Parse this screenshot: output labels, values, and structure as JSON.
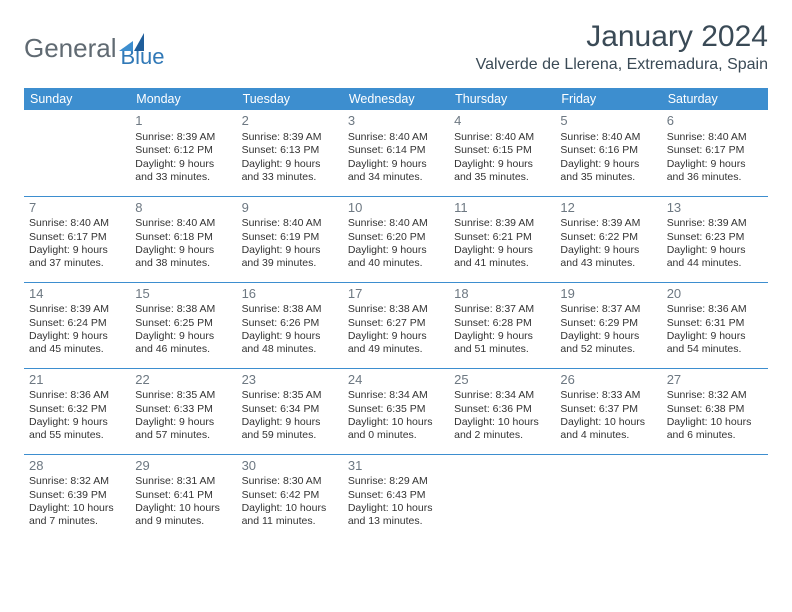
{
  "logo": {
    "word1": "General",
    "word2": "Blue"
  },
  "title": "January 2024",
  "subtitle": "Valverde de Llerena, Extremadura, Spain",
  "dayHeaders": [
    "Sunday",
    "Monday",
    "Tuesday",
    "Wednesday",
    "Thursday",
    "Friday",
    "Saturday"
  ],
  "colors": {
    "headerBg": "#3d8ecf",
    "headerFg": "#ffffff",
    "rule": "#3d8ecf",
    "dayNum": "#6d7882",
    "body": "#333333",
    "titleColor": "#3a4a56",
    "logoGray": "#606a72",
    "logoBlue": "#3179b7"
  },
  "weeks": [
    [
      {},
      {
        "n": "1",
        "sr": "Sunrise: 8:39 AM",
        "ss": "Sunset: 6:12 PM",
        "d1": "Daylight: 9 hours",
        "d2": "and 33 minutes."
      },
      {
        "n": "2",
        "sr": "Sunrise: 8:39 AM",
        "ss": "Sunset: 6:13 PM",
        "d1": "Daylight: 9 hours",
        "d2": "and 33 minutes."
      },
      {
        "n": "3",
        "sr": "Sunrise: 8:40 AM",
        "ss": "Sunset: 6:14 PM",
        "d1": "Daylight: 9 hours",
        "d2": "and 34 minutes."
      },
      {
        "n": "4",
        "sr": "Sunrise: 8:40 AM",
        "ss": "Sunset: 6:15 PM",
        "d1": "Daylight: 9 hours",
        "d2": "and 35 minutes."
      },
      {
        "n": "5",
        "sr": "Sunrise: 8:40 AM",
        "ss": "Sunset: 6:16 PM",
        "d1": "Daylight: 9 hours",
        "d2": "and 35 minutes."
      },
      {
        "n": "6",
        "sr": "Sunrise: 8:40 AM",
        "ss": "Sunset: 6:17 PM",
        "d1": "Daylight: 9 hours",
        "d2": "and 36 minutes."
      }
    ],
    [
      {
        "n": "7",
        "sr": "Sunrise: 8:40 AM",
        "ss": "Sunset: 6:17 PM",
        "d1": "Daylight: 9 hours",
        "d2": "and 37 minutes."
      },
      {
        "n": "8",
        "sr": "Sunrise: 8:40 AM",
        "ss": "Sunset: 6:18 PM",
        "d1": "Daylight: 9 hours",
        "d2": "and 38 minutes."
      },
      {
        "n": "9",
        "sr": "Sunrise: 8:40 AM",
        "ss": "Sunset: 6:19 PM",
        "d1": "Daylight: 9 hours",
        "d2": "and 39 minutes."
      },
      {
        "n": "10",
        "sr": "Sunrise: 8:40 AM",
        "ss": "Sunset: 6:20 PM",
        "d1": "Daylight: 9 hours",
        "d2": "and 40 minutes."
      },
      {
        "n": "11",
        "sr": "Sunrise: 8:39 AM",
        "ss": "Sunset: 6:21 PM",
        "d1": "Daylight: 9 hours",
        "d2": "and 41 minutes."
      },
      {
        "n": "12",
        "sr": "Sunrise: 8:39 AM",
        "ss": "Sunset: 6:22 PM",
        "d1": "Daylight: 9 hours",
        "d2": "and 43 minutes."
      },
      {
        "n": "13",
        "sr": "Sunrise: 8:39 AM",
        "ss": "Sunset: 6:23 PM",
        "d1": "Daylight: 9 hours",
        "d2": "and 44 minutes."
      }
    ],
    [
      {
        "n": "14",
        "sr": "Sunrise: 8:39 AM",
        "ss": "Sunset: 6:24 PM",
        "d1": "Daylight: 9 hours",
        "d2": "and 45 minutes."
      },
      {
        "n": "15",
        "sr": "Sunrise: 8:38 AM",
        "ss": "Sunset: 6:25 PM",
        "d1": "Daylight: 9 hours",
        "d2": "and 46 minutes."
      },
      {
        "n": "16",
        "sr": "Sunrise: 8:38 AM",
        "ss": "Sunset: 6:26 PM",
        "d1": "Daylight: 9 hours",
        "d2": "and 48 minutes."
      },
      {
        "n": "17",
        "sr": "Sunrise: 8:38 AM",
        "ss": "Sunset: 6:27 PM",
        "d1": "Daylight: 9 hours",
        "d2": "and 49 minutes."
      },
      {
        "n": "18",
        "sr": "Sunrise: 8:37 AM",
        "ss": "Sunset: 6:28 PM",
        "d1": "Daylight: 9 hours",
        "d2": "and 51 minutes."
      },
      {
        "n": "19",
        "sr": "Sunrise: 8:37 AM",
        "ss": "Sunset: 6:29 PM",
        "d1": "Daylight: 9 hours",
        "d2": "and 52 minutes."
      },
      {
        "n": "20",
        "sr": "Sunrise: 8:36 AM",
        "ss": "Sunset: 6:31 PM",
        "d1": "Daylight: 9 hours",
        "d2": "and 54 minutes."
      }
    ],
    [
      {
        "n": "21",
        "sr": "Sunrise: 8:36 AM",
        "ss": "Sunset: 6:32 PM",
        "d1": "Daylight: 9 hours",
        "d2": "and 55 minutes."
      },
      {
        "n": "22",
        "sr": "Sunrise: 8:35 AM",
        "ss": "Sunset: 6:33 PM",
        "d1": "Daylight: 9 hours",
        "d2": "and 57 minutes."
      },
      {
        "n": "23",
        "sr": "Sunrise: 8:35 AM",
        "ss": "Sunset: 6:34 PM",
        "d1": "Daylight: 9 hours",
        "d2": "and 59 minutes."
      },
      {
        "n": "24",
        "sr": "Sunrise: 8:34 AM",
        "ss": "Sunset: 6:35 PM",
        "d1": "Daylight: 10 hours",
        "d2": "and 0 minutes."
      },
      {
        "n": "25",
        "sr": "Sunrise: 8:34 AM",
        "ss": "Sunset: 6:36 PM",
        "d1": "Daylight: 10 hours",
        "d2": "and 2 minutes."
      },
      {
        "n": "26",
        "sr": "Sunrise: 8:33 AM",
        "ss": "Sunset: 6:37 PM",
        "d1": "Daylight: 10 hours",
        "d2": "and 4 minutes."
      },
      {
        "n": "27",
        "sr": "Sunrise: 8:32 AM",
        "ss": "Sunset: 6:38 PM",
        "d1": "Daylight: 10 hours",
        "d2": "and 6 minutes."
      }
    ],
    [
      {
        "n": "28",
        "sr": "Sunrise: 8:32 AM",
        "ss": "Sunset: 6:39 PM",
        "d1": "Daylight: 10 hours",
        "d2": "and 7 minutes."
      },
      {
        "n": "29",
        "sr": "Sunrise: 8:31 AM",
        "ss": "Sunset: 6:41 PM",
        "d1": "Daylight: 10 hours",
        "d2": "and 9 minutes."
      },
      {
        "n": "30",
        "sr": "Sunrise: 8:30 AM",
        "ss": "Sunset: 6:42 PM",
        "d1": "Daylight: 10 hours",
        "d2": "and 11 minutes."
      },
      {
        "n": "31",
        "sr": "Sunrise: 8:29 AM",
        "ss": "Sunset: 6:43 PM",
        "d1": "Daylight: 10 hours",
        "d2": "and 13 minutes."
      },
      {},
      {},
      {}
    ]
  ]
}
